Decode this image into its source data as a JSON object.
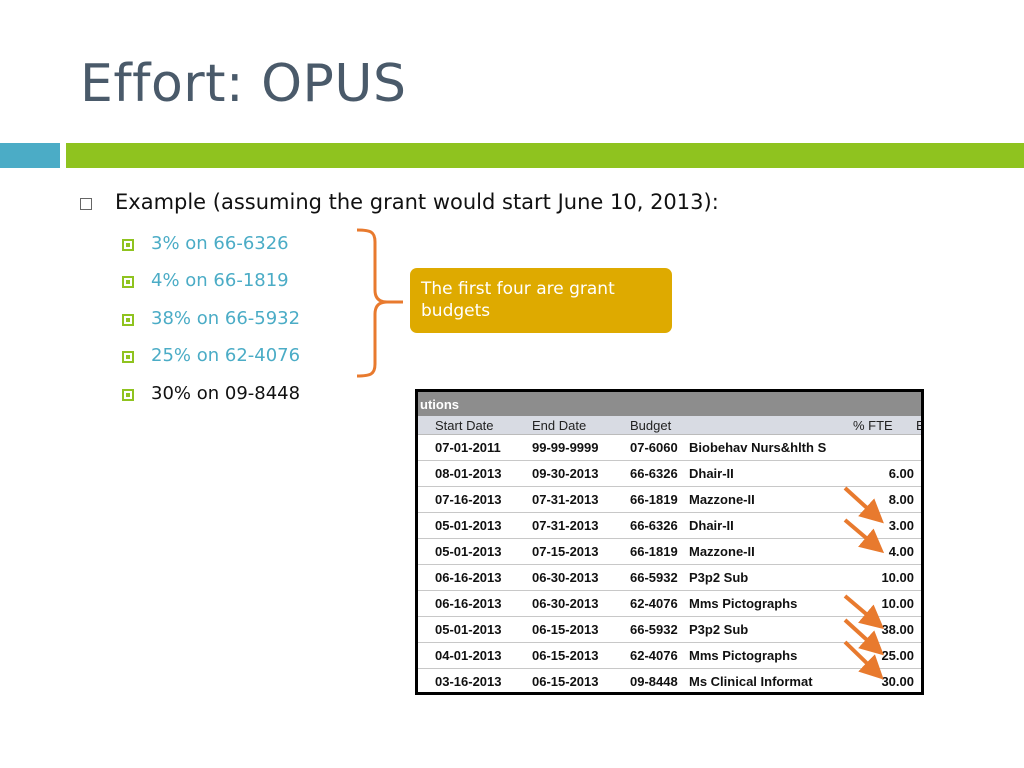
{
  "slide": {
    "title": "Effort: OPUS",
    "bullet": "Example (assuming the grant would start June 10, 2013):",
    "sub_bullets": [
      "3% on 66-6326",
      "4% on 66-1819",
      "38% on 66-5932",
      "25% on 62-4076",
      "30% on 09-8448"
    ],
    "callout": "The first four are grant budgets",
    "accent_colors": {
      "teal": "#4bacc6",
      "green": "#8fc31f",
      "callout": "#deaa00",
      "arrow": "#e87a2e"
    }
  },
  "table": {
    "header": "utions",
    "columns": [
      "Start Date",
      "End Date",
      "Budget",
      "% FTE",
      "E"
    ],
    "rows": [
      {
        "start": "07-01-2011",
        "end": "99-99-9999",
        "budget": "07-6060",
        "name": "Biobehav Nurs&hlth S",
        "fte": ""
      },
      {
        "start": "08-01-2013",
        "end": "09-30-2013",
        "budget": "66-6326",
        "name": "Dhair-II",
        "fte": "6.00"
      },
      {
        "start": "07-16-2013",
        "end": "07-31-2013",
        "budget": "66-1819",
        "name": "Mazzone-II",
        "fte": "8.00"
      },
      {
        "start": "05-01-2013",
        "end": "07-31-2013",
        "budget": "66-6326",
        "name": "Dhair-II",
        "fte": "3.00"
      },
      {
        "start": "05-01-2013",
        "end": "07-15-2013",
        "budget": "66-1819",
        "name": "Mazzone-II",
        "fte": "4.00"
      },
      {
        "start": "06-16-2013",
        "end": "06-30-2013",
        "budget": "66-5932",
        "name": "P3p2 Sub",
        "fte": "10.00"
      },
      {
        "start": "06-16-2013",
        "end": "06-30-2013",
        "budget": "62-4076",
        "name": "Mms Pictographs",
        "fte": "10.00"
      },
      {
        "start": "05-01-2013",
        "end": "06-15-2013",
        "budget": "66-5932",
        "name": "P3p2 Sub",
        "fte": "38.00"
      },
      {
        "start": "04-01-2013",
        "end": "06-15-2013",
        "budget": "62-4076",
        "name": "Mms Pictographs",
        "fte": "25.00"
      },
      {
        "start": "03-16-2013",
        "end": "06-15-2013",
        "budget": "09-8448",
        "name": "Ms Clinical Informat",
        "fte": "30.00"
      }
    ]
  }
}
